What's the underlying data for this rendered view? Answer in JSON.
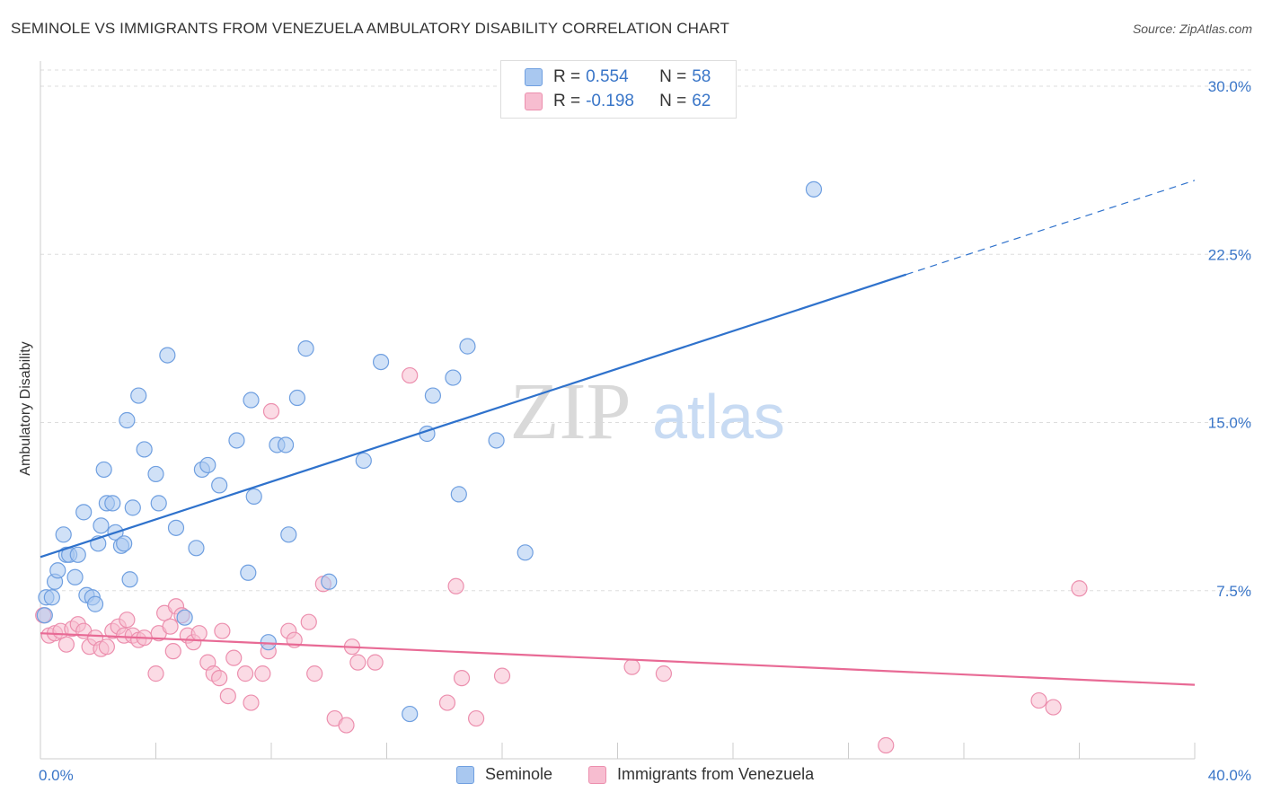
{
  "title": "SEMINOLE VS IMMIGRANTS FROM VENEZUELA AMBULATORY DISABILITY CORRELATION CHART",
  "source": "Source: ZipAtlas.com",
  "watermark": {
    "zip": "ZIP",
    "atlas": "atlas"
  },
  "legend_top": [
    {
      "r_label": "R =",
      "r_value": "0.554",
      "n_label": "N =",
      "n_value": "58"
    },
    {
      "r_label": "R =",
      "r_value": "-0.198",
      "n_label": "N =",
      "n_value": "62"
    }
  ],
  "legend_bottom": [
    "Seminole",
    "Immigrants from Venezuela"
  ],
  "colors": {
    "seminole_fill": "#a9c8f0",
    "seminole_stroke": "#6f9fe0",
    "seminole_line": "#2f72cc",
    "venezuela_fill": "#f7bdd0",
    "venezuela_stroke": "#ec8fae",
    "venezuela_line": "#e86a95",
    "axis_label": "#3a76c8",
    "grid": "#dddddd"
  },
  "chart_data": {
    "type": "scatter",
    "title": "SEMINOLE VS IMMIGRANTS FROM VENEZUELA AMBULATORY DISABILITY CORRELATION CHART",
    "xlabel": "",
    "ylabel": "Ambulatory Disability",
    "xlim": [
      0,
      40
    ],
    "ylim": [
      0,
      30
    ],
    "x_tick_labels": [
      "0.0%",
      "40.0%"
    ],
    "y_ticks": [
      7.5,
      15.0,
      22.5,
      30.0
    ],
    "y_tick_labels": [
      "7.5%",
      "15.0%",
      "22.5%",
      "30.0%"
    ],
    "grid": "horizontal dashed",
    "legend_position": "top-center",
    "series": [
      {
        "name": "Seminole",
        "r": 0.554,
        "n": 58,
        "trend": {
          "x0": 0,
          "y0": 9.0,
          "x1": 30,
          "y1": 21.6,
          "dashed_to_x": 40,
          "dashed_to_y": 25.8
        },
        "points": [
          [
            0.2,
            7.2
          ],
          [
            0.4,
            7.2
          ],
          [
            0.5,
            7.9
          ],
          [
            0.6,
            8.4
          ],
          [
            0.8,
            10.0
          ],
          [
            0.9,
            9.1
          ],
          [
            1.0,
            9.1
          ],
          [
            1.2,
            8.1
          ],
          [
            1.3,
            9.1
          ],
          [
            1.5,
            11.0
          ],
          [
            1.6,
            7.3
          ],
          [
            1.8,
            7.2
          ],
          [
            1.9,
            6.9
          ],
          [
            2.0,
            9.6
          ],
          [
            2.1,
            10.4
          ],
          [
            2.2,
            12.9
          ],
          [
            2.3,
            11.4
          ],
          [
            2.5,
            11.4
          ],
          [
            2.6,
            10.1
          ],
          [
            2.8,
            9.5
          ],
          [
            2.9,
            9.6
          ],
          [
            3.0,
            15.1
          ],
          [
            3.1,
            8.0
          ],
          [
            3.2,
            11.2
          ],
          [
            3.4,
            16.2
          ],
          [
            3.6,
            13.8
          ],
          [
            4.0,
            12.7
          ],
          [
            4.1,
            11.4
          ],
          [
            4.4,
            18.0
          ],
          [
            4.7,
            10.3
          ],
          [
            5.0,
            6.3
          ],
          [
            5.4,
            9.4
          ],
          [
            5.6,
            12.9
          ],
          [
            5.8,
            13.1
          ],
          [
            6.2,
            12.2
          ],
          [
            6.8,
            14.2
          ],
          [
            7.2,
            8.3
          ],
          [
            7.3,
            16.0
          ],
          [
            7.4,
            11.7
          ],
          [
            7.9,
            5.2
          ],
          [
            8.2,
            14.0
          ],
          [
            8.5,
            14.0
          ],
          [
            8.6,
            10.0
          ],
          [
            8.9,
            16.1
          ],
          [
            9.2,
            18.3
          ],
          [
            10.0,
            7.9
          ],
          [
            11.2,
            13.3
          ],
          [
            11.8,
            17.7
          ],
          [
            12.8,
            2.0
          ],
          [
            13.4,
            14.5
          ],
          [
            13.6,
            16.2
          ],
          [
            14.3,
            17.0
          ],
          [
            14.5,
            11.8
          ],
          [
            14.8,
            18.4
          ],
          [
            15.8,
            14.2
          ],
          [
            16.8,
            9.2
          ],
          [
            26.8,
            25.4
          ],
          [
            0.15,
            6.4
          ]
        ]
      },
      {
        "name": "Immigrants from Venezuela",
        "r": -0.198,
        "n": 62,
        "trend": {
          "x0": 0,
          "y0": 5.6,
          "x1": 40,
          "y1": 3.3
        },
        "points": [
          [
            0.1,
            6.4
          ],
          [
            0.3,
            5.5
          ],
          [
            0.5,
            5.6
          ],
          [
            0.7,
            5.7
          ],
          [
            0.9,
            5.1
          ],
          [
            1.1,
            5.8
          ],
          [
            1.3,
            6.0
          ],
          [
            1.5,
            5.7
          ],
          [
            1.7,
            5.0
          ],
          [
            1.9,
            5.4
          ],
          [
            2.1,
            4.9
          ],
          [
            2.3,
            5.0
          ],
          [
            2.5,
            5.7
          ],
          [
            2.7,
            5.9
          ],
          [
            2.9,
            5.5
          ],
          [
            3.0,
            6.2
          ],
          [
            3.2,
            5.5
          ],
          [
            3.4,
            5.3
          ],
          [
            3.6,
            5.4
          ],
          [
            4.0,
            3.8
          ],
          [
            4.1,
            5.6
          ],
          [
            4.3,
            6.5
          ],
          [
            4.5,
            5.9
          ],
          [
            4.6,
            4.8
          ],
          [
            4.7,
            6.8
          ],
          [
            4.9,
            6.4
          ],
          [
            5.1,
            5.5
          ],
          [
            5.3,
            5.2
          ],
          [
            5.5,
            5.6
          ],
          [
            5.8,
            4.3
          ],
          [
            6.0,
            3.8
          ],
          [
            6.2,
            3.6
          ],
          [
            6.3,
            5.7
          ],
          [
            6.5,
            2.8
          ],
          [
            6.7,
            4.5
          ],
          [
            7.1,
            3.8
          ],
          [
            7.3,
            2.5
          ],
          [
            7.7,
            3.8
          ],
          [
            7.9,
            4.8
          ],
          [
            8.0,
            15.5
          ],
          [
            8.6,
            5.7
          ],
          [
            8.8,
            5.3
          ],
          [
            9.3,
            6.1
          ],
          [
            9.5,
            3.8
          ],
          [
            9.8,
            7.8
          ],
          [
            10.2,
            1.8
          ],
          [
            10.6,
            1.5
          ],
          [
            10.8,
            5.0
          ],
          [
            11.0,
            4.3
          ],
          [
            11.6,
            4.3
          ],
          [
            12.8,
            17.1
          ],
          [
            14.1,
            2.5
          ],
          [
            14.4,
            7.7
          ],
          [
            14.6,
            3.6
          ],
          [
            15.1,
            1.8
          ],
          [
            16.0,
            3.7
          ],
          [
            20.5,
            4.1
          ],
          [
            21.6,
            3.8
          ],
          [
            29.3,
            0.6
          ],
          [
            34.6,
            2.6
          ],
          [
            35.1,
            2.3
          ],
          [
            36.0,
            7.6
          ]
        ]
      }
    ]
  }
}
